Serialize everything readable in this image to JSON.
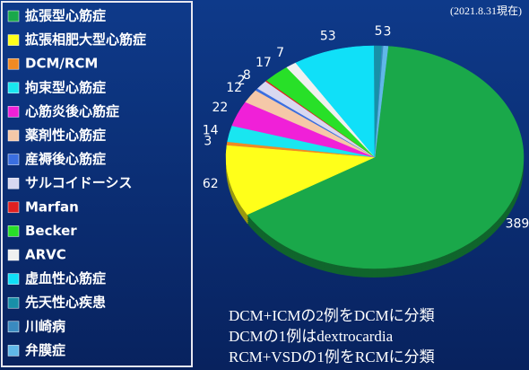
{
  "chart_data": {
    "type": "pie",
    "subtitle": "(2021.8.31現在)",
    "categories": [
      "拡張型心筋症",
      "拡張相肥大型心筋症",
      "DCM/RCM",
      "拘束型心筋症",
      "心筋炎後心筋症",
      "薬剤性心筋症",
      "産褥後心筋症",
      "サルコイドーシス",
      "Marfan",
      "Becker",
      "ARVC",
      "虚血性心筋症",
      "先天性心疾患",
      "川崎病",
      "弁膜症"
    ],
    "values": [
      389,
      62,
      3,
      14,
      22,
      12,
      2,
      8,
      1,
      17,
      7,
      53,
      5,
      1,
      3
    ],
    "value_labels": [
      "389",
      "62",
      "3",
      "14",
      "22",
      "12",
      "2",
      "8",
      null,
      "17",
      "7",
      "53",
      "5",
      null,
      "3"
    ],
    "colors": [
      "#1aa84a",
      "#ffff1a",
      "#f08a24",
      "#19e6f0",
      "#f020d8",
      "#f5c8a8",
      "#3a6ee0",
      "#d8d8f0",
      "#e02020",
      "#28e028",
      "#f0f0f0",
      "#10e0f8",
      "#1890a8",
      "#3a8ac0",
      "#60b8e8"
    ],
    "annotations": [
      "DCM+ICMの2例をDCMに分類",
      "DCMの1例はdextrocardia",
      "RCM+VSDの1例をRCMに分類"
    ]
  }
}
